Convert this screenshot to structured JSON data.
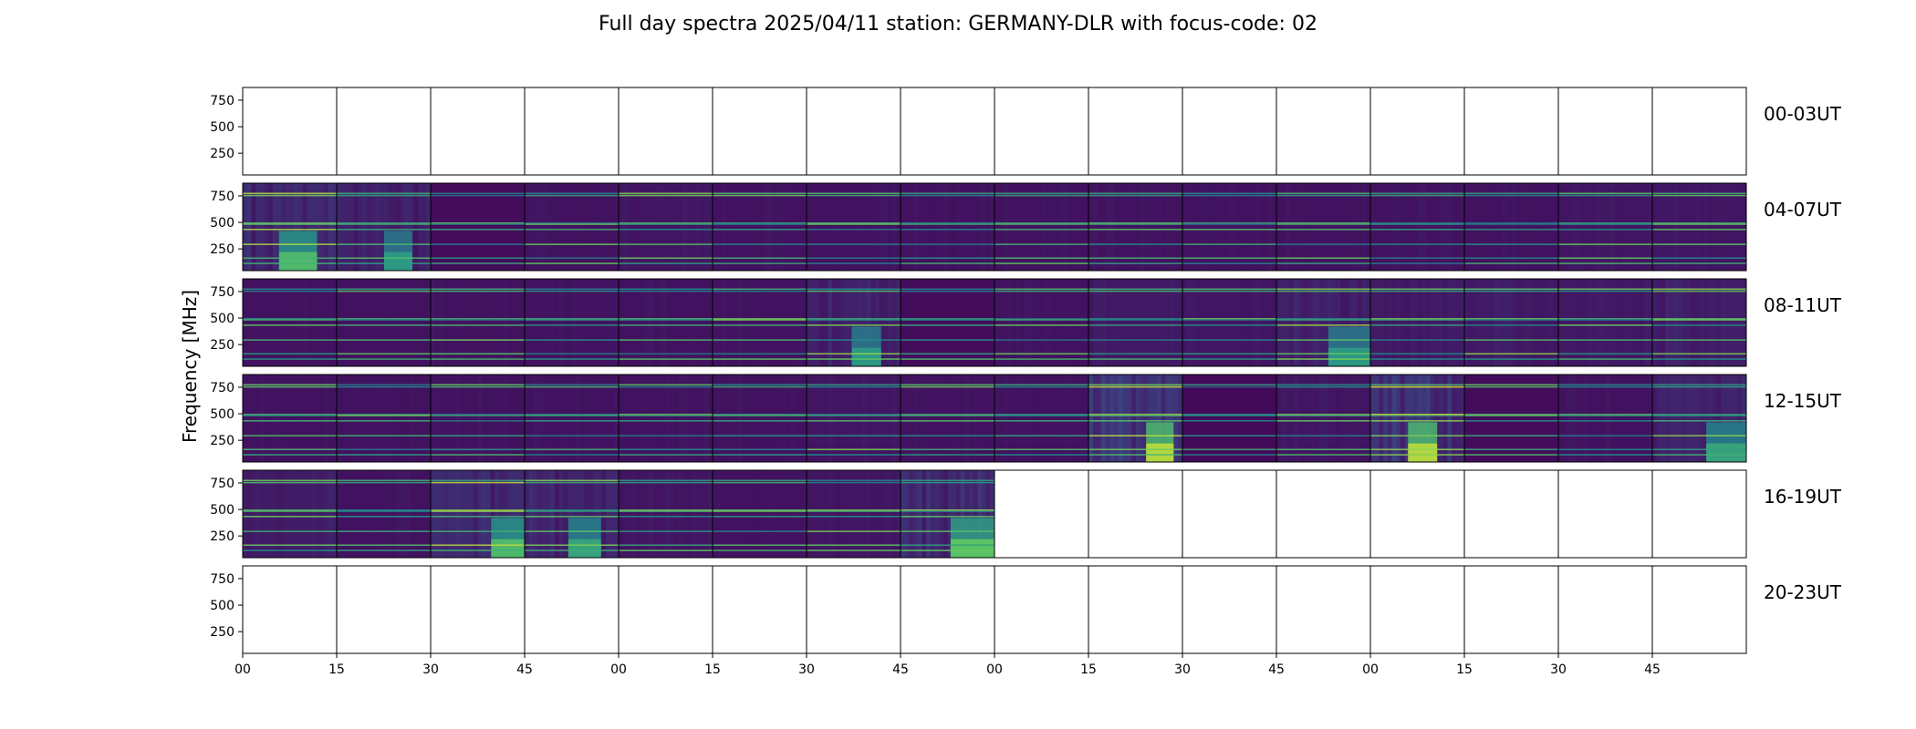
{
  "chart_data": {
    "type": "heatmap",
    "title": "Full day spectra 2025/04/11 station: GERMANY-DLR with focus-code: 02",
    "ylabel": "Frequency [MHz]",
    "xlabel": "",
    "yticks": [
      750,
      500,
      250
    ],
    "ylim": [
      45,
      870
    ],
    "xticks": [
      "00",
      "15",
      "30",
      "45",
      "00",
      "15",
      "30",
      "45",
      "00",
      "15",
      "30",
      "45",
      "00",
      "15",
      "30",
      "45"
    ],
    "minutes_per_panel": 15,
    "panels_per_row": 16,
    "colormap": [
      "#440154",
      "#3b528b",
      "#21918c",
      "#5ec962",
      "#fde725"
    ],
    "rows": [
      {
        "label": "00-03UT",
        "panels_with_data": 0,
        "intensity": []
      },
      {
        "label": "04-07UT",
        "panels_with_data": 16,
        "intensity": [
          0.7,
          0.55,
          0.2,
          0.3,
          0.35,
          0.3,
          0.3,
          0.3,
          0.3,
          0.3,
          0.3,
          0.3,
          0.3,
          0.3,
          0.35,
          0.35
        ]
      },
      {
        "label": "08-11UT",
        "panels_with_data": 16,
        "intensity": [
          0.3,
          0.3,
          0.3,
          0.3,
          0.3,
          0.3,
          0.55,
          0.2,
          0.3,
          0.4,
          0.35,
          0.55,
          0.45,
          0.45,
          0.4,
          0.5
        ]
      },
      {
        "label": "12-15UT",
        "panels_with_data": 16,
        "intensity": [
          0.3,
          0.3,
          0.3,
          0.3,
          0.3,
          0.3,
          0.35,
          0.3,
          0.3,
          0.9,
          0.15,
          0.35,
          0.9,
          0.2,
          0.3,
          0.6
        ]
      },
      {
        "label": "16-19UT",
        "panels_with_data": 8,
        "intensity": [
          0.45,
          0.3,
          0.7,
          0.6,
          0.35,
          0.3,
          0.35,
          0.75
        ]
      },
      {
        "label": "20-23UT",
        "panels_with_data": 0,
        "intensity": []
      }
    ]
  }
}
